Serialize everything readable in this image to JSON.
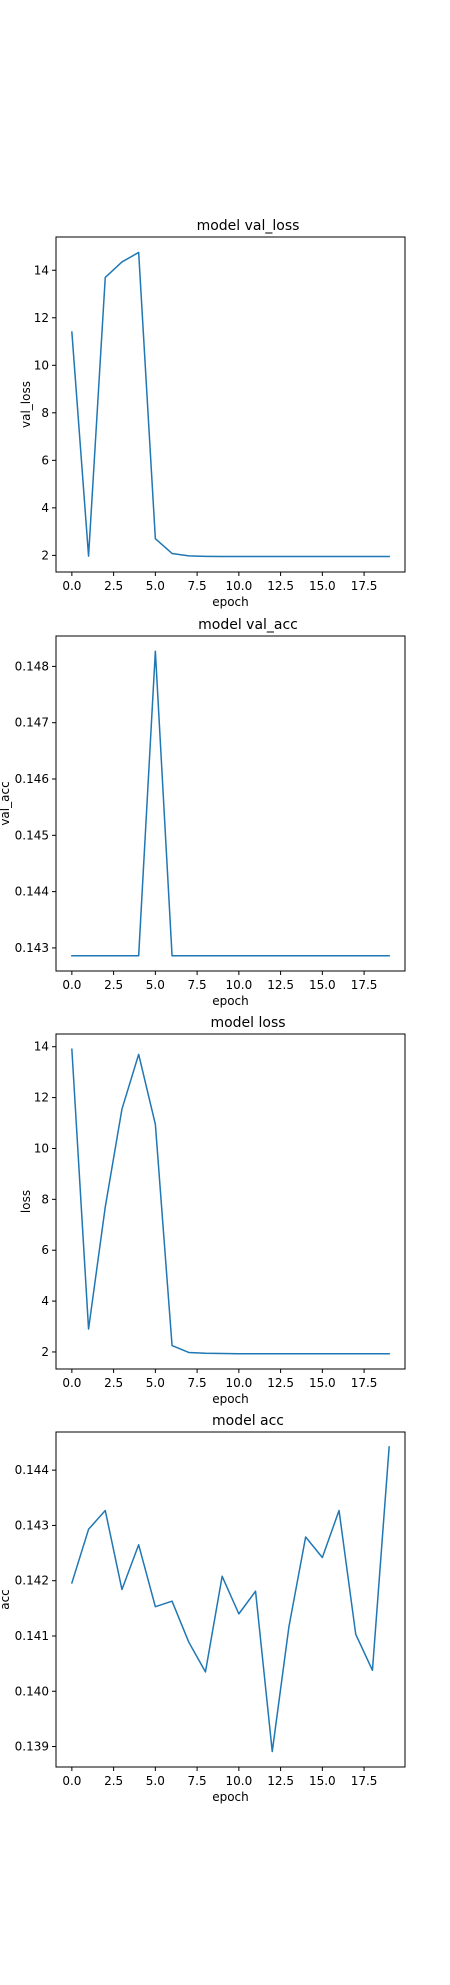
{
  "series_color": "#1f77b4",
  "chart_data": [
    {
      "type": "line",
      "title": "model val_loss",
      "xlabel": "epoch",
      "ylabel": "val_loss",
      "x": [
        0,
        1,
        2,
        3,
        4,
        5,
        6,
        7,
        8,
        9,
        10,
        11,
        12,
        13,
        14,
        15,
        16,
        17,
        18,
        19
      ],
      "values": [
        11.4,
        1.97,
        13.7,
        14.35,
        14.75,
        2.7,
        2.08,
        1.98,
        1.96,
        1.95,
        1.95,
        1.95,
        1.95,
        1.95,
        1.95,
        1.95,
        1.95,
        1.95,
        1.95,
        1.95
      ],
      "xlim": [
        -0.95,
        19.95
      ],
      "ylim": [
        1.3,
        15.4
      ],
      "xticks": [
        0,
        2.5,
        5,
        7.5,
        10,
        12.5,
        15,
        17.5
      ],
      "xtick_labels": [
        "0.0",
        "2.5",
        "5.0",
        "7.5",
        "10.0",
        "12.5",
        "15.0",
        "17.5"
      ],
      "yticks": [
        2,
        4,
        6,
        8,
        10,
        12,
        14
      ],
      "ytick_labels": [
        "2",
        "4",
        "6",
        "8",
        "10",
        "12",
        "14"
      ],
      "grid": false
    },
    {
      "type": "line",
      "title": "model val_acc",
      "xlabel": "epoch",
      "ylabel": "val_acc",
      "x": [
        0,
        1,
        2,
        3,
        4,
        5,
        6,
        7,
        8,
        9,
        10,
        11,
        12,
        13,
        14,
        15,
        16,
        17,
        18,
        19
      ],
      "values": [
        0.14286,
        0.14286,
        0.14286,
        0.14286,
        0.14286,
        0.14827,
        0.14286,
        0.14286,
        0.14286,
        0.14286,
        0.14286,
        0.14286,
        0.14286,
        0.14286,
        0.14286,
        0.14286,
        0.14286,
        0.14286,
        0.14286,
        0.14286
      ],
      "xlim": [
        -0.95,
        19.95
      ],
      "ylim": [
        0.14259,
        0.14854
      ],
      "xticks": [
        0,
        2.5,
        5,
        7.5,
        10,
        12.5,
        15,
        17.5
      ],
      "xtick_labels": [
        "0.0",
        "2.5",
        "5.0",
        "7.5",
        "10.0",
        "12.5",
        "15.0",
        "17.5"
      ],
      "yticks": [
        0.143,
        0.144,
        0.145,
        0.146,
        0.147,
        0.148
      ],
      "ytick_labels": [
        "0.143",
        "0.144",
        "0.145",
        "0.146",
        "0.147",
        "0.148"
      ],
      "grid": false
    },
    {
      "type": "line",
      "title": "model loss",
      "xlabel": "epoch",
      "ylabel": "loss",
      "x": [
        0,
        1,
        2,
        3,
        4,
        5,
        6,
        7,
        8,
        9,
        10,
        11,
        12,
        13,
        14,
        15,
        16,
        17,
        18,
        19
      ],
      "values": [
        13.9,
        2.9,
        7.7,
        11.55,
        13.7,
        10.95,
        2.25,
        1.98,
        1.95,
        1.94,
        1.93,
        1.93,
        1.93,
        1.93,
        1.93,
        1.93,
        1.93,
        1.93,
        1.93,
        1.93
      ],
      "xlim": [
        -0.95,
        19.95
      ],
      "ylim": [
        1.33,
        14.5
      ],
      "xticks": [
        0,
        2.5,
        5,
        7.5,
        10,
        12.5,
        15,
        17.5
      ],
      "xtick_labels": [
        "0.0",
        "2.5",
        "5.0",
        "7.5",
        "10.0",
        "12.5",
        "15.0",
        "17.5"
      ],
      "yticks": [
        2,
        4,
        6,
        8,
        10,
        12,
        14
      ],
      "ytick_labels": [
        "2",
        "4",
        "6",
        "8",
        "10",
        "12",
        "14"
      ],
      "grid": false
    },
    {
      "type": "line",
      "title": "model acc",
      "xlabel": "epoch",
      "ylabel": "acc",
      "x": [
        0,
        1,
        2,
        3,
        4,
        5,
        6,
        7,
        8,
        9,
        10,
        11,
        12,
        13,
        14,
        15,
        16,
        17,
        18,
        19
      ],
      "values": [
        0.14196,
        0.14293,
        0.14327,
        0.14184,
        0.14265,
        0.14153,
        0.14163,
        0.14089,
        0.14035,
        0.14208,
        0.1414,
        0.14181,
        0.13891,
        0.14117,
        0.14279,
        0.14242,
        0.14327,
        0.14103,
        0.14038,
        0.14442
      ],
      "xlim": [
        -0.95,
        19.95
      ],
      "ylim": [
        0.13863,
        0.14469
      ],
      "xticks": [
        0,
        2.5,
        5,
        7.5,
        10,
        12.5,
        15,
        17.5
      ],
      "xtick_labels": [
        "0.0",
        "2.5",
        "5.0",
        "7.5",
        "10.0",
        "12.5",
        "15.0",
        "17.5"
      ],
      "yticks": [
        0.139,
        0.14,
        0.141,
        0.142,
        0.143,
        0.144
      ],
      "ytick_labels": [
        "0.139",
        "0.140",
        "0.141",
        "0.142",
        "0.143",
        "0.144"
      ],
      "grid": false
    }
  ]
}
